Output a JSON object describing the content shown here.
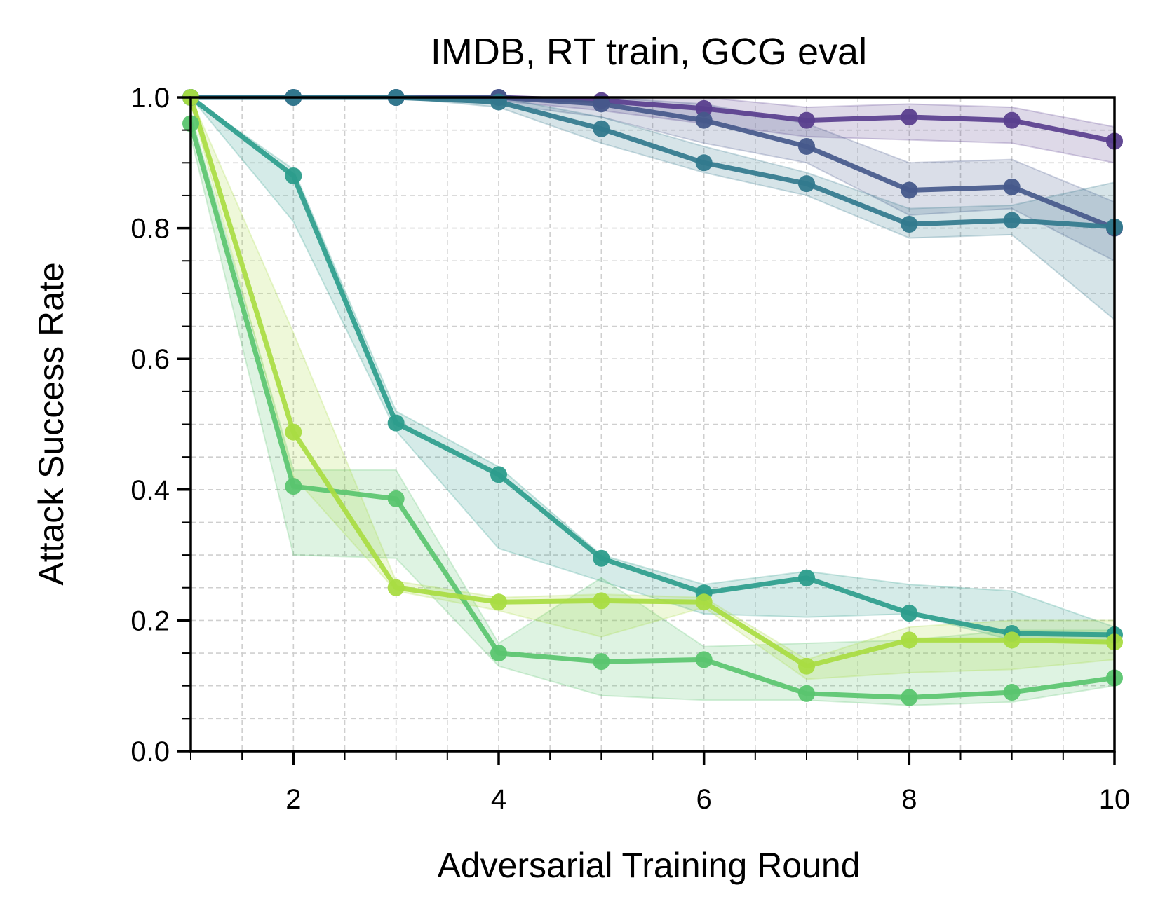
{
  "chart_data": {
    "type": "line",
    "title": "IMDB, RT train, GCG eval",
    "xlabel": "Adversarial Training Round",
    "ylabel": "Attack Success Rate",
    "xlim": [
      1,
      10
    ],
    "ylim": [
      0,
      1
    ],
    "x_major_ticks": [
      2,
      4,
      6,
      8,
      10
    ],
    "x_minor_step": 0.5,
    "y_major_ticks": [
      0.0,
      0.2,
      0.4,
      0.6,
      0.8,
      1.0
    ],
    "y_tick_labels": [
      "0.0",
      "0.2",
      "0.4",
      "0.6",
      "0.8",
      "1.0"
    ],
    "y_minor_step": 0.05,
    "grid": true,
    "legend": "none",
    "x": [
      1,
      2,
      3,
      4,
      5,
      6,
      7,
      8,
      9,
      10
    ],
    "series": [
      {
        "color": "#5a3f8e",
        "values": [
          1.0,
          1.0,
          1.0,
          1.0,
          0.995,
          0.983,
          0.965,
          0.97,
          0.965,
          0.933
        ],
        "lower": [
          1.0,
          1.0,
          1.0,
          0.995,
          0.98,
          0.96,
          0.94,
          0.935,
          0.93,
          0.9
        ],
        "upper": [
          1.0,
          1.0,
          1.0,
          1.0,
          1.0,
          1.0,
          0.985,
          0.99,
          0.985,
          0.955
        ]
      },
      {
        "color": "#46598b",
        "values": [
          1.0,
          1.0,
          1.0,
          1.0,
          0.99,
          0.965,
          0.925,
          0.858,
          0.863,
          0.8
        ],
        "lower": [
          1.0,
          1.0,
          1.0,
          0.99,
          0.97,
          0.93,
          0.9,
          0.82,
          0.83,
          0.75
        ],
        "upper": [
          1.0,
          1.0,
          1.0,
          1.0,
          1.0,
          0.99,
          0.96,
          0.9,
          0.905,
          0.84
        ]
      },
      {
        "color": "#32798d",
        "values": [
          1.0,
          1.0,
          1.0,
          0.993,
          0.952,
          0.9,
          0.868,
          0.806,
          0.812,
          0.802
        ],
        "lower": [
          1.0,
          1.0,
          1.0,
          0.985,
          0.93,
          0.885,
          0.85,
          0.785,
          0.79,
          0.66
        ],
        "upper": [
          1.0,
          1.0,
          1.0,
          1.0,
          0.97,
          0.925,
          0.885,
          0.83,
          0.835,
          0.87
        ]
      },
      {
        "color": "#2c9d8c",
        "values": [
          1.0,
          0.88,
          0.502,
          0.423,
          0.295,
          0.242,
          0.265,
          0.211,
          0.18,
          0.178
        ],
        "lower": [
          1.0,
          0.81,
          0.49,
          0.31,
          0.26,
          0.21,
          0.205,
          0.21,
          0.17,
          0.165
        ],
        "upper": [
          1.0,
          0.89,
          0.52,
          0.435,
          0.3,
          0.255,
          0.275,
          0.255,
          0.245,
          0.19
        ]
      },
      {
        "color": "#5ac56f",
        "values": [
          0.96,
          0.405,
          0.386,
          0.15,
          0.137,
          0.14,
          0.088,
          0.082,
          0.09,
          0.112
        ],
        "lower": [
          0.94,
          0.3,
          0.295,
          0.13,
          0.085,
          0.078,
          0.078,
          0.07,
          0.075,
          0.1
        ],
        "upper": [
          0.975,
          0.43,
          0.43,
          0.165,
          0.265,
          0.16,
          0.165,
          0.17,
          0.185,
          0.185
        ]
      },
      {
        "color": "#a9dc42",
        "values": [
          1.0,
          0.488,
          0.25,
          0.228,
          0.23,
          0.228,
          0.13,
          0.17,
          0.17,
          0.167
        ],
        "lower": [
          0.99,
          0.42,
          0.245,
          0.215,
          0.175,
          0.22,
          0.11,
          0.12,
          0.125,
          0.14
        ],
        "upper": [
          1.0,
          0.64,
          0.26,
          0.235,
          0.24,
          0.235,
          0.14,
          0.19,
          0.2,
          0.2
        ]
      }
    ]
  }
}
